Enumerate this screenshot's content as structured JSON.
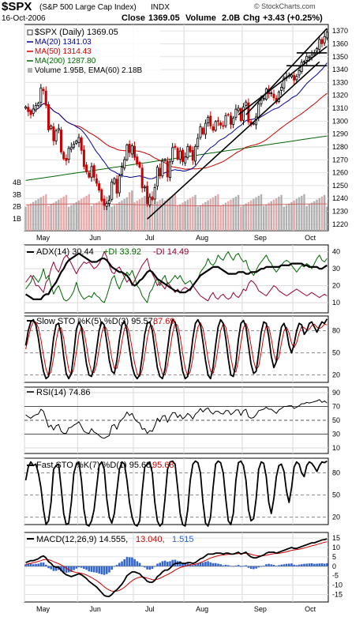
{
  "header": {
    "symbol": "$SPX",
    "name": "(S&P 500 Large Cap Index)",
    "exchange": "INDX",
    "date": "16-Oct-2006",
    "close_label": "Close",
    "close_value": "1369.05",
    "volume_label": "Volume",
    "volume_value": "2.0B",
    "chg_label": "Chg",
    "chg_value": "+3.43 (+0.25%)",
    "copyright": "© StockCharts.com"
  },
  "colors": {
    "up": "#000000",
    "down": "#cc0000",
    "ma20": "#000099",
    "ma50": "#cc0000",
    "ma200": "#006600",
    "adx": "#000000",
    "pdi": "#006600",
    "mdi": "#990033",
    "volume": "#b0b0b0",
    "volume_down": "#e9a8a8",
    "macd_hist": "#3366cc",
    "macd_signal": "#cc0000"
  },
  "chart_data": [
    {
      "type": "candlestick",
      "panel": "price",
      "legend": [
        {
          "key": "legend_price",
          "text": "$SPX (Daily) 1369.05"
        },
        {
          "key": "legend_ma20",
          "text": "MA(20) 1341.03"
        },
        {
          "key": "legend_ma50",
          "text": "MA(50) 1314.43"
        },
        {
          "key": "legend_ma200",
          "text": "MA(200) 1287.80"
        },
        {
          "key": "legend_vol",
          "text": "Volume 1.95B, EMA(60) 2.18B"
        }
      ],
      "ylim": [
        1215,
        1375
      ],
      "yticks": [
        1220,
        1230,
        1240,
        1250,
        1260,
        1270,
        1280,
        1290,
        1300,
        1310,
        1320,
        1330,
        1340,
        1350,
        1360,
        1370
      ],
      "vol_ticks": [
        "1B",
        "2B",
        "3B",
        "4B"
      ],
      "x_months": [
        {
          "label": "May",
          "index": 0
        },
        {
          "label": "Jun",
          "index": 21
        },
        {
          "label": "Jul",
          "index": 43
        },
        {
          "label": "Aug",
          "index": 63
        },
        {
          "label": "Sep",
          "index": 86
        },
        {
          "label": "Oct",
          "index": 106
        }
      ],
      "closes": [
        1311.1,
        1307.4,
        1305.0,
        1309.4,
        1312.1,
        1313.9,
        1325.8,
        1323.7,
        1312.4,
        1293.2,
        1296.3,
        1284.7,
        1292.4,
        1294.2,
        1276.1,
        1270.8,
        1269.4,
        1278.9,
        1279.8,
        1282.1,
        1284.5,
        1287.3,
        1277.3,
        1264.9,
        1260.6,
        1256.6,
        1264.8,
        1256.4,
        1251.8,
        1246.4,
        1238.4,
        1234.6,
        1236.1,
        1238.6,
        1252.8,
        1255.4,
        1244.1,
        1257.6,
        1264.3,
        1270.1,
        1281.5,
        1275.6,
        1280.9,
        1271.9,
        1266.9,
        1264.3,
        1248.2,
        1248.9,
        1235.9,
        1241.1,
        1239.2,
        1248.5,
        1264.2,
        1257.5,
        1268.9,
        1270.2,
        1256.7,
        1268.4,
        1279.4,
        1279.6,
        1270.5,
        1276.8,
        1268.6,
        1272.2,
        1280.2,
        1276.3,
        1269.7,
        1280.4,
        1286.7,
        1295.7,
        1290.1,
        1298.3,
        1302.9,
        1296.3,
        1292.9,
        1299.7,
        1299.8,
        1296.9,
        1296.1,
        1304.2,
        1304.7,
        1297.5,
        1302.3,
        1309.3,
        1310.1,
        1300.3,
        1311.1,
        1314.8,
        1299.4,
        1297.2,
        1298.3,
        1303.3,
        1313.2,
        1316.3,
        1317.7,
        1325.0,
        1321.2,
        1322.0,
        1318.1,
        1314.8,
        1322.7,
        1326.3,
        1333.4,
        1334.1,
        1335.4,
        1335.8,
        1331.8,
        1334.8,
        1339.2,
        1345.7,
        1346.4,
        1350.3,
        1349.8,
        1351.4,
        1353.1,
        1356.4,
        1363.3,
        1360.1,
        1365.6,
        1369.1
      ]
    },
    {
      "type": "line",
      "panel": "adx",
      "legend": "ADX(14) 30.44",
      "legend_pdi": "+DI 33.92",
      "legend_mdi": "-DI 14.49",
      "ylim": [
        4,
        44
      ],
      "yticks": [
        10,
        20,
        30,
        40
      ],
      "adx": [
        15,
        14,
        13,
        12,
        12,
        12,
        12,
        14,
        15,
        15,
        18,
        20,
        22,
        25,
        28,
        30,
        33,
        35,
        36,
        37,
        38,
        39,
        38,
        37,
        36,
        35,
        34,
        34,
        34,
        35,
        36,
        36,
        35,
        33,
        31,
        30,
        29,
        28,
        28,
        27,
        26,
        24,
        21,
        20,
        21,
        23,
        24,
        26,
        28,
        29,
        28,
        26,
        24,
        23,
        22,
        21,
        20,
        19,
        18,
        17,
        17,
        16,
        16,
        16,
        17,
        18,
        20,
        22,
        24,
        26,
        27,
        28,
        29,
        30,
        31,
        31,
        31,
        30,
        29,
        28,
        27,
        27,
        27,
        27,
        28,
        28,
        28,
        27,
        27,
        28,
        28,
        28,
        29,
        30,
        30,
        31,
        31,
        31,
        31,
        31,
        31,
        32,
        32,
        32,
        32,
        33,
        33,
        33,
        33,
        33,
        32,
        32,
        31,
        31,
        31,
        31,
        30,
        30,
        31,
        32
      ],
      "pdi": [
        18,
        20,
        22,
        26,
        24,
        22,
        25,
        30,
        24,
        26,
        20,
        15,
        18,
        20,
        16,
        12,
        11,
        12,
        14,
        17,
        22,
        17,
        14,
        12,
        13,
        14,
        13,
        16,
        14,
        13,
        11,
        10,
        14,
        19,
        24,
        26,
        21,
        18,
        22,
        25,
        28,
        26,
        29,
        25,
        20,
        18,
        14,
        12,
        10,
        16,
        18,
        22,
        24,
        20,
        24,
        26,
        21,
        22,
        24,
        26,
        24,
        26,
        23,
        21,
        22,
        23,
        20,
        22,
        24,
        28,
        30,
        32,
        36,
        33,
        32,
        34,
        38,
        36,
        35,
        38,
        40,
        37,
        35,
        38,
        39,
        36,
        34,
        35,
        30,
        28,
        26,
        29,
        32,
        34,
        36,
        38,
        35,
        33,
        30,
        28,
        30,
        32,
        34,
        35,
        34,
        32,
        30,
        28,
        30,
        32,
        31,
        33,
        32,
        30,
        33,
        36,
        38,
        35,
        34,
        36
      ],
      "mdi": [
        22,
        24,
        26,
        24,
        20,
        20,
        18,
        16,
        22,
        24,
        30,
        34,
        30,
        28,
        32,
        36,
        38,
        36,
        33,
        30,
        27,
        30,
        32,
        34,
        33,
        34,
        32,
        30,
        31,
        33,
        36,
        40,
        37,
        32,
        28,
        27,
        30,
        31,
        28,
        25,
        22,
        24,
        20,
        23,
        26,
        29,
        32,
        34,
        36,
        30,
        27,
        24,
        20,
        22,
        20,
        18,
        22,
        20,
        18,
        16,
        18,
        16,
        18,
        19,
        18,
        17,
        20,
        18,
        16,
        14,
        13,
        12,
        11,
        14,
        16,
        13,
        12,
        14,
        15,
        13,
        12,
        13,
        16,
        14,
        13,
        15,
        18,
        17,
        21,
        23,
        22,
        20,
        17,
        16,
        15,
        14,
        16,
        18,
        20,
        19,
        17,
        16,
        15,
        14,
        15,
        16,
        17,
        18,
        17,
        16,
        15,
        14,
        15,
        16,
        15,
        14,
        13,
        14,
        15,
        14
      ]
    },
    {
      "type": "line",
      "panel": "slowsto",
      "legend": "Slow STO %K(5) %D(3) 95.57,",
      "legend_d": "87.69",
      "ylim": [
        10,
        100
      ],
      "yticks": [
        20,
        50,
        80
      ],
      "k": [
        60,
        80,
        92,
        95,
        88,
        70,
        45,
        25,
        15,
        18,
        40,
        70,
        88,
        90,
        75,
        45,
        22,
        15,
        22,
        50,
        82,
        92,
        85,
        60,
        35,
        20,
        18,
        30,
        55,
        80,
        92,
        88,
        65,
        40,
        25,
        22,
        40,
        68,
        88,
        93,
        80,
        55,
        32,
        20,
        15,
        20,
        45,
        75,
        90,
        92,
        80,
        55,
        30,
        18,
        15,
        28,
        55,
        82,
        95,
        92,
        75,
        48,
        25,
        15,
        18,
        40,
        70,
        90,
        95,
        88,
        65,
        40,
        20,
        15,
        30,
        60,
        85,
        95,
        90,
        70,
        42,
        20,
        18,
        35,
        68,
        90,
        94,
        85,
        60,
        35,
        22,
        25,
        50,
        78,
        92,
        90,
        72,
        45,
        30,
        38,
        65,
        85,
        90,
        80,
        60,
        50,
        62,
        80,
        90,
        88,
        75,
        80,
        90,
        92,
        85,
        78,
        86,
        92,
        90,
        96
      ],
      "d": [
        55,
        70,
        84,
        92,
        92,
        84,
        68,
        47,
        28,
        19,
        24,
        43,
        66,
        83,
        84,
        70,
        47,
        27,
        20,
        29,
        51,
        75,
        86,
        79,
        60,
        38,
        24,
        23,
        34,
        55,
        76,
        87,
        82,
        64,
        43,
        29,
        29,
        43,
        65,
        83,
        87,
        76,
        56,
        36,
        22,
        18,
        27,
        47,
        70,
        86,
        87,
        76,
        55,
        34,
        21,
        20,
        33,
        55,
        77,
        90,
        87,
        72,
        49,
        29,
        19,
        24,
        43,
        67,
        85,
        91,
        83,
        64,
        42,
        25,
        22,
        35,
        58,
        80,
        90,
        85,
        67,
        44,
        27,
        24,
        40,
        64,
        84,
        90,
        80,
        60,
        39,
        27,
        32,
        51,
        73,
        87,
        85,
        69,
        49,
        38,
        44,
        63,
        80,
        85,
        77,
        63,
        57,
        64,
        77,
        86,
        84,
        81,
        82,
        87,
        89,
        85,
        83,
        85,
        89,
        88
      ]
    },
    {
      "type": "line",
      "panel": "rsi",
      "legend": "RSI(14) 74.86",
      "ylim": [
        2,
        98
      ],
      "yticks": [
        10,
        30,
        50,
        70,
        90
      ],
      "rsi": [
        58,
        55,
        53,
        56,
        58,
        59,
        66,
        63,
        52,
        40,
        43,
        36,
        42,
        44,
        34,
        31,
        31,
        39,
        40,
        43,
        45,
        48,
        41,
        34,
        32,
        31,
        38,
        33,
        31,
        28,
        25,
        24,
        26,
        28,
        42,
        44,
        37,
        47,
        51,
        55,
        62,
        57,
        60,
        52,
        48,
        46,
        37,
        38,
        31,
        35,
        34,
        42,
        53,
        48,
        56,
        57,
        47,
        55,
        61,
        61,
        54,
        58,
        52,
        55,
        60,
        57,
        52,
        59,
        62,
        67,
        62,
        66,
        68,
        62,
        59,
        63,
        63,
        60,
        59,
        64,
        64,
        58,
        61,
        65,
        65,
        57,
        64,
        66,
        55,
        53,
        54,
        58,
        64,
        65,
        66,
        69,
        66,
        66,
        63,
        60,
        65,
        67,
        70,
        70,
        71,
        71,
        67,
        69,
        71,
        74,
        74,
        76,
        75,
        76,
        77,
        78,
        80,
        76,
        78,
        75
      ]
    },
    {
      "type": "line",
      "panel": "faststo",
      "legend": "Fast STO %K(7) %D(1) 95.68,",
      "legend_d": "95.68",
      "ylim": [
        10,
        100
      ],
      "yticks": [
        20,
        50,
        80
      ],
      "k": [
        70,
        88,
        95,
        90,
        92,
        80,
        60,
        30,
        10,
        15,
        40,
        85,
        90,
        92,
        60,
        25,
        10,
        12,
        40,
        80,
        92,
        95,
        70,
        30,
        10,
        8,
        15,
        30,
        60,
        90,
        95,
        85,
        45,
        20,
        12,
        25,
        55,
        85,
        95,
        92,
        70,
        40,
        20,
        10,
        8,
        15,
        55,
        88,
        92,
        95,
        80,
        40,
        15,
        8,
        12,
        45,
        85,
        95,
        96,
        92,
        60,
        25,
        10,
        8,
        30,
        70,
        92,
        96,
        94,
        80,
        40,
        12,
        8,
        20,
        60,
        92,
        96,
        94,
        80,
        45,
        15,
        10,
        25,
        70,
        94,
        96,
        90,
        70,
        30,
        15,
        18,
        45,
        85,
        95,
        93,
        75,
        40,
        25,
        45,
        75,
        90,
        92,
        82,
        55,
        40,
        60,
        88,
        95,
        92,
        80,
        75,
        90,
        95,
        93,
        88,
        82,
        90,
        95,
        94,
        96
      ]
    },
    {
      "type": "line",
      "panel": "macd",
      "legend": "MACD(12,26,9) 14.555,",
      "legend_sig": "13.040,",
      "legend_hist": "1.515",
      "ylim": [
        -19,
        18
      ],
      "yticks": [
        -15,
        -10,
        -5,
        0,
        5,
        10,
        15
      ],
      "macd": [
        2,
        2.5,
        3,
        3,
        3.5,
        4,
        5,
        5.5,
        4.5,
        2.5,
        1.5,
        0,
        -0.5,
        -0.5,
        -2,
        -3.5,
        -4.5,
        -5,
        -5.5,
        -5,
        -4.5,
        -4,
        -4.5,
        -5.5,
        -6.5,
        -8,
        -9,
        -10,
        -11,
        -12.5,
        -14,
        -15.5,
        -16,
        -16,
        -15,
        -13.5,
        -12.5,
        -11,
        -9.5,
        -7.5,
        -5,
        -4,
        -3,
        -3,
        -3.5,
        -4,
        -5.5,
        -6.5,
        -8,
        -8.5,
        -8.5,
        -7.5,
        -5.5,
        -4.5,
        -3,
        -2,
        -2,
        -1,
        0.5,
        1.5,
        1.5,
        2,
        1.5,
        1.5,
        2,
        2,
        1.5,
        2,
        3,
        4,
        4.5,
        5.5,
        6.5,
        6.5,
        6.5,
        7,
        7,
        7,
        6.5,
        7,
        7,
        6.5,
        6.5,
        7,
        7.5,
        6.5,
        7,
        7.5,
        6,
        5,
        4.5,
        4.5,
        5,
        5.5,
        6,
        7,
        7.5,
        7.5,
        7.5,
        7,
        7.5,
        8,
        8.5,
        9,
        9.5,
        10,
        9.5,
        9.5,
        10,
        10.5,
        11,
        11.5,
        12,
        12.5,
        12.5,
        13,
        13.5,
        14,
        14.2,
        14.6
      ],
      "signal": [
        1,
        1.3,
        1.6,
        1.9,
        2.2,
        2.6,
        3,
        3.5,
        3.7,
        3.5,
        3.1,
        2.5,
        1.9,
        1.4,
        0.7,
        -0.1,
        -1,
        -1.8,
        -2.5,
        -3,
        -3.3,
        -3.5,
        -3.7,
        -4.1,
        -4.6,
        -5.3,
        -6,
        -6.8,
        -7.6,
        -8.6,
        -9.7,
        -10.9,
        -11.9,
        -12.7,
        -13.2,
        -13.3,
        -13.2,
        -12.8,
        -12.1,
        -11.2,
        -10,
        -8.8,
        -7.7,
        -6.8,
        -6.2,
        -5.8,
        -5.7,
        -5.9,
        -6.3,
        -6.7,
        -7.1,
        -7.2,
        -6.9,
        -6.4,
        -5.7,
        -5,
        -4.4,
        -3.7,
        -2.9,
        -2,
        -1.3,
        -0.7,
        -0.3,
        0.1,
        0.5,
        0.8,
        0.9,
        1.1,
        1.5,
        2,
        2.5,
        3.1,
        3.8,
        4.4,
        4.8,
        5.3,
        5.6,
        5.9,
        6,
        6.2,
        6.4,
        6.4,
        6.5,
        6.6,
        6.8,
        6.8,
        6.8,
        7,
        6.8,
        6.4,
        6,
        5.7,
        5.6,
        5.6,
        5.7,
        5.9,
        6.2,
        6.5,
        6.7,
        6.8,
        6.9,
        7.1,
        7.4,
        7.7,
        8.1,
        8.5,
        8.7,
        8.9,
        9.1,
        9.4,
        9.7,
        10.1,
        10.5,
        10.9,
        11.2,
        11.6,
        12,
        12.4,
        12.8,
        13
      ]
    }
  ]
}
